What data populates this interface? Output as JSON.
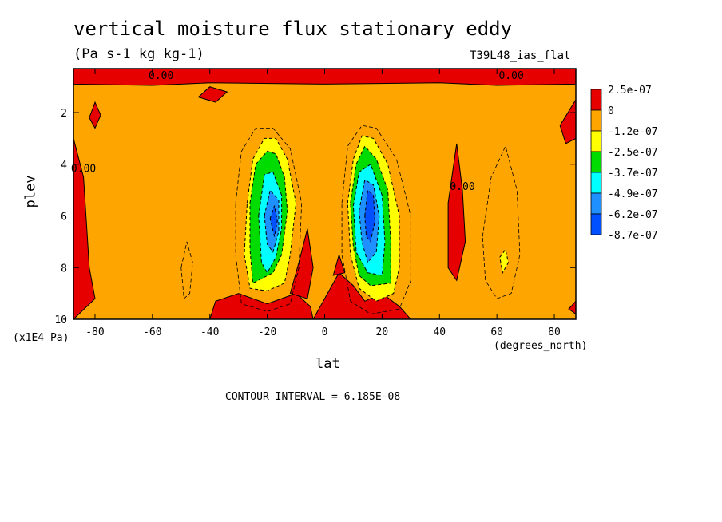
{
  "chart_data": {
    "type": "heatmap",
    "title": "vertical moisture flux stationary eddy",
    "units": "(Pa s-1 kg kg-1)",
    "run_label": "T39L48_ias_flat",
    "xlabel": "lat",
    "x_units": "(degrees_north)",
    "ylabel": "plev",
    "y_units": "(x1E4 Pa)",
    "contour_interval_text": "CONTOUR INTERVAL = 6.185E-08",
    "xlim": [
      -87.5,
      87.5
    ],
    "ylim": [
      0.3,
      10
    ],
    "y_inverted": true,
    "x_ticks": [
      -80,
      -60,
      -40,
      -20,
      0,
      20,
      40,
      60,
      80
    ],
    "y_ticks": [
      2,
      4,
      6,
      8,
      10
    ],
    "contour_labels": [
      {
        "text": "0.00",
        "x": -57,
        "y": 0.7
      },
      {
        "text": "0.00",
        "x": 65,
        "y": 0.7
      },
      {
        "text": "0.00",
        "x": -84,
        "y": 4.3
      },
      {
        "text": "0.00",
        "x": 48,
        "y": 5.0
      }
    ],
    "colorbar": {
      "labels": [
        "2.5e-07",
        "0",
        "-1.2e-07",
        "-2.5e-07",
        "-3.7e-07",
        "-4.9e-07",
        "-6.2e-07",
        "-8.7e-07"
      ],
      "colors": [
        "#e60000",
        "#ffa500",
        "#ffff00",
        "#00dc00",
        "#00ffff",
        "#1e90ff",
        "#0050ff"
      ]
    },
    "regions": [
      {
        "name": "positive-top-band",
        "level": 0,
        "poly": [
          [
            -87.5,
            0.3
          ],
          [
            87.5,
            0.3
          ],
          [
            87.5,
            0.9
          ],
          [
            60,
            0.95
          ],
          [
            40,
            0.85
          ],
          [
            0,
            0.9
          ],
          [
            -40,
            0.85
          ],
          [
            -60,
            0.95
          ],
          [
            -87.5,
            0.9
          ]
        ]
      },
      {
        "name": "positive-blob-nh-top",
        "level": 0,
        "poly": [
          [
            -44,
            1.4
          ],
          [
            -40,
            1.0
          ],
          [
            -34,
            1.2
          ],
          [
            -38,
            1.6
          ]
        ]
      },
      {
        "name": "positive-left-edge",
        "level": 0,
        "poly": [
          [
            -87.5,
            3.0
          ],
          [
            -84,
            4.5
          ],
          [
            -82,
            8.0
          ],
          [
            -80,
            9.2
          ],
          [
            -87.5,
            10
          ]
        ]
      },
      {
        "name": "positive-small-left",
        "level": 0,
        "poly": [
          [
            -82,
            2.2
          ],
          [
            -80,
            1.6
          ],
          [
            -78,
            2.1
          ],
          [
            -80,
            2.6
          ]
        ]
      },
      {
        "name": "positive-right-top",
        "level": 0,
        "poly": [
          [
            87.5,
            1.5
          ],
          [
            82,
            2.5
          ],
          [
            84,
            3.2
          ],
          [
            87.5,
            3.0
          ]
        ]
      },
      {
        "name": "positive-right-column",
        "level": 0,
        "poly": [
          [
            43,
            5.5
          ],
          [
            46,
            3.2
          ],
          [
            48,
            5.0
          ],
          [
            49,
            7.0
          ],
          [
            46,
            8.5
          ],
          [
            43,
            8.0
          ]
        ]
      },
      {
        "name": "positive-right-bottom",
        "level": 0,
        "poly": [
          [
            87.5,
            9.3
          ],
          [
            85,
            9.6
          ],
          [
            87.5,
            9.8
          ]
        ]
      },
      {
        "name": "positive-bottom-left",
        "level": 0,
        "poly": [
          [
            -40,
            10
          ],
          [
            -38,
            9.3
          ],
          [
            -30,
            9.0
          ],
          [
            -20,
            9.4
          ],
          [
            -10,
            9.0
          ],
          [
            -5,
            9.5
          ],
          [
            -4,
            10
          ]
        ]
      },
      {
        "name": "positive-bottom-center",
        "level": 0,
        "poly": [
          [
            -4,
            10
          ],
          [
            0,
            9.2
          ],
          [
            5,
            8.2
          ],
          [
            10,
            8.7
          ],
          [
            14,
            9.3
          ],
          [
            20,
            9.0
          ],
          [
            26,
            9.5
          ],
          [
            30,
            10
          ]
        ]
      },
      {
        "name": "positive-center-column",
        "level": 0,
        "poly": [
          [
            -12,
            9.0
          ],
          [
            -9,
            7.8
          ],
          [
            -6,
            6.5
          ],
          [
            -4,
            8.0
          ],
          [
            -6,
            9.2
          ]
        ]
      },
      {
        "name": "positive-center-small",
        "level": 0,
        "poly": [
          [
            3,
            8.3
          ],
          [
            5,
            7.5
          ],
          [
            7,
            8.2
          ]
        ]
      },
      {
        "name": "sh-level-1",
        "level": 2,
        "poly": [
          [
            -27,
            5.5
          ],
          [
            -25,
            3.8
          ],
          [
            -21,
            3.0
          ],
          [
            -17,
            3.0
          ],
          [
            -13,
            3.8
          ],
          [
            -10,
            5.5
          ],
          [
            -12,
            7.5
          ],
          [
            -14,
            8.6
          ],
          [
            -20,
            8.9
          ],
          [
            -26,
            8.8
          ],
          [
            -28,
            7.5
          ]
        ]
      },
      {
        "name": "sh-level-2",
        "level": 3,
        "poly": [
          [
            -26,
            5.5
          ],
          [
            -24,
            4.0
          ],
          [
            -20,
            3.5
          ],
          [
            -17,
            3.6
          ],
          [
            -14,
            4.5
          ],
          [
            -13,
            5.8
          ],
          [
            -15,
            7.5
          ],
          [
            -18,
            8.2
          ],
          [
            -25,
            8.6
          ],
          [
            -26,
            7.3
          ]
        ]
      },
      {
        "name": "sh-level-3",
        "level": 4,
        "poly": [
          [
            -23,
            6.0
          ],
          [
            -21,
            4.4
          ],
          [
            -18,
            4.3
          ],
          [
            -15,
            5.2
          ],
          [
            -15,
            6.5
          ],
          [
            -17,
            7.6
          ],
          [
            -20,
            8.2
          ],
          [
            -22,
            7.8
          ]
        ]
      },
      {
        "name": "sh-level-4",
        "level": 5,
        "poly": [
          [
            -21,
            6.0
          ],
          [
            -19,
            5.0
          ],
          [
            -16,
            5.4
          ],
          [
            -16,
            6.6
          ],
          [
            -18,
            7.4
          ],
          [
            -20,
            7.1
          ]
        ]
      },
      {
        "name": "sh-level-5",
        "level": 6,
        "poly": [
          [
            -19,
            6.1
          ],
          [
            -17.5,
            5.6
          ],
          [
            -16.5,
            6.2
          ],
          [
            -17.5,
            6.8
          ]
        ]
      },
      {
        "name": "nh-level-1",
        "level": 2,
        "poly": [
          [
            8,
            5.5
          ],
          [
            10,
            3.8
          ],
          [
            13,
            2.9
          ],
          [
            17,
            3.0
          ],
          [
            22,
            4.0
          ],
          [
            26,
            6.0
          ],
          [
            26,
            8.0
          ],
          [
            24,
            9.0
          ],
          [
            18,
            9.3
          ],
          [
            12,
            8.8
          ],
          [
            9,
            7.5
          ]
        ]
      },
      {
        "name": "nh-level-2",
        "level": 3,
        "poly": [
          [
            9,
            5.5
          ],
          [
            11,
            4.0
          ],
          [
            14,
            3.3
          ],
          [
            18,
            3.8
          ],
          [
            22,
            5.0
          ],
          [
            23,
            7.0
          ],
          [
            23,
            8.6
          ],
          [
            16,
            8.7
          ],
          [
            12,
            8.3
          ],
          [
            10,
            7.2
          ]
        ]
      },
      {
        "name": "nh-level-3",
        "level": 4,
        "poly": [
          [
            10,
            5.6
          ],
          [
            12,
            4.3
          ],
          [
            16,
            4.0
          ],
          [
            20,
            5.2
          ],
          [
            21,
            7.0
          ],
          [
            20,
            8.3
          ],
          [
            15,
            8.2
          ],
          [
            11,
            7.4
          ]
        ]
      },
      {
        "name": "nh-level-4",
        "level": 5,
        "poly": [
          [
            12,
            5.8
          ],
          [
            14,
            4.6
          ],
          [
            17,
            4.8
          ],
          [
            19,
            6.0
          ],
          [
            18,
            7.4
          ],
          [
            15,
            7.8
          ],
          [
            13,
            7.0
          ]
        ]
      },
      {
        "name": "nh-level-5",
        "level": 6,
        "poly": [
          [
            14,
            6.0
          ],
          [
            15,
            5.0
          ],
          [
            17,
            5.2
          ],
          [
            17.5,
            6.2
          ],
          [
            16,
            7.0
          ],
          [
            14.5,
            6.8
          ]
        ]
      },
      {
        "name": "small-yellow-right",
        "level": 2,
        "poly": [
          [
            61,
            7.6
          ],
          [
            63,
            7.3
          ],
          [
            64,
            7.8
          ],
          [
            62,
            8.2
          ]
        ]
      }
    ],
    "dashed_contours": [
      [
        [
          -31,
          5.5
        ],
        [
          -29,
          3.5
        ],
        [
          -24,
          2.6
        ],
        [
          -18,
          2.6
        ],
        [
          -12,
          3.4
        ],
        [
          -8,
          5.5
        ],
        [
          -9,
          8.0
        ],
        [
          -12,
          9.4
        ],
        [
          -20,
          9.7
        ],
        [
          -29,
          9.4
        ],
        [
          -31,
          7.5
        ]
      ],
      [
        [
          6,
          5.5
        ],
        [
          8,
          3.3
        ],
        [
          13,
          2.5
        ],
        [
          18,
          2.6
        ],
        [
          25,
          3.8
        ],
        [
          30,
          6.0
        ],
        [
          30,
          8.5
        ],
        [
          26,
          9.6
        ],
        [
          16,
          9.8
        ],
        [
          9,
          9.3
        ],
        [
          6,
          7.5
        ]
      ],
      [
        [
          -50,
          8.0
        ],
        [
          -48,
          7.0
        ],
        [
          -46,
          7.8
        ],
        [
          -47,
          9.0
        ],
        [
          -49,
          9.2
        ]
      ],
      [
        [
          55,
          6.8
        ],
        [
          58,
          4.5
        ],
        [
          63,
          3.3
        ],
        [
          67,
          5.0
        ],
        [
          68,
          7.5
        ],
        [
          65,
          9.0
        ],
        [
          60,
          9.2
        ],
        [
          56,
          8.5
        ]
      ]
    ]
  }
}
